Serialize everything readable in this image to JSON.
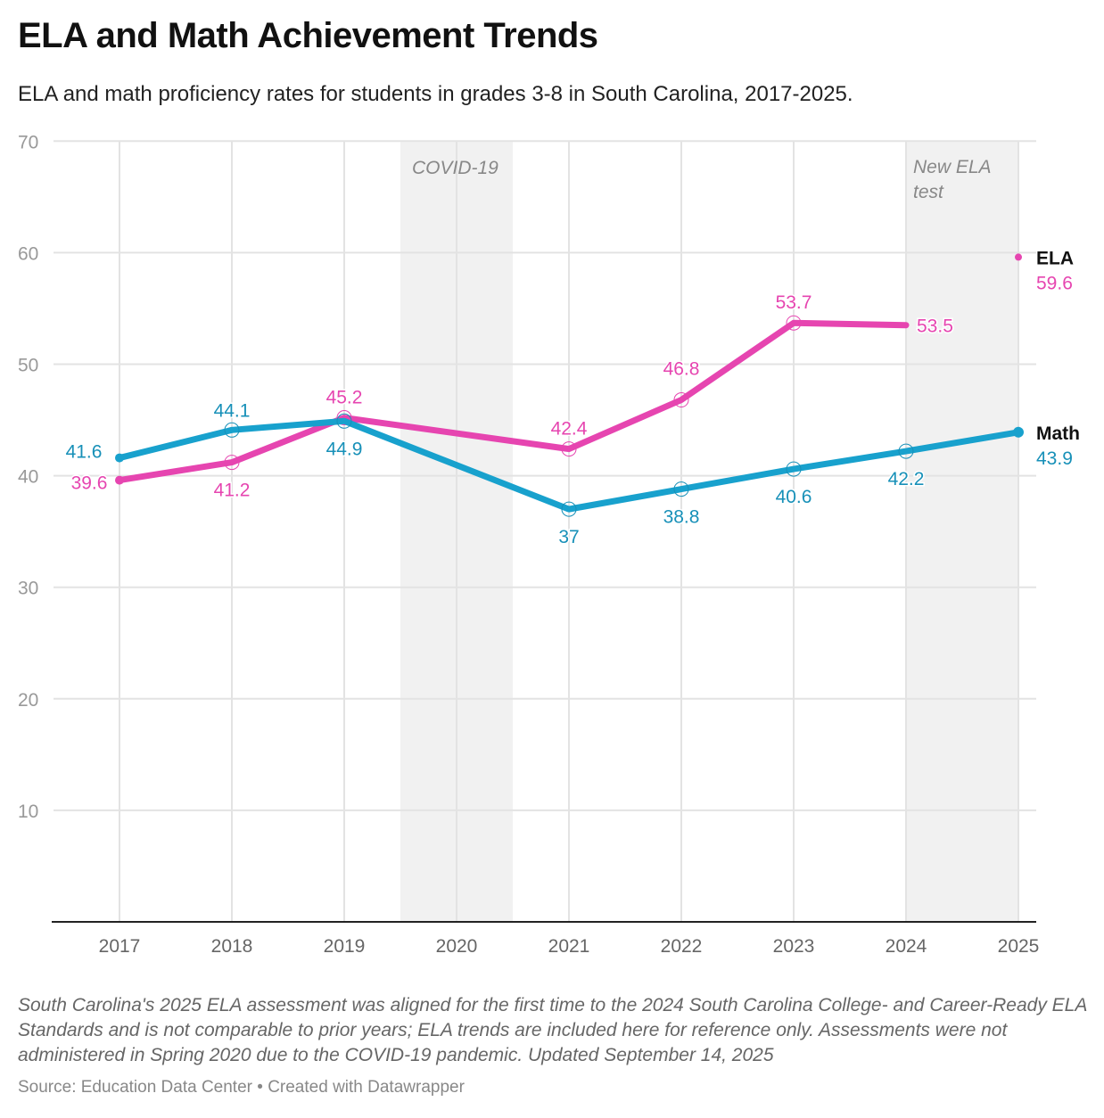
{
  "title": "ELA and Math Achievement Trends",
  "subtitle": "ELA and math proficiency rates for students in grades 3-8 in South Carolina, 2017-2025.",
  "notes": "South Carolina's 2025 ELA assessment was aligned for the first time to the 2024 South Carolina College- and Career-Ready ELA Standards and is not comparable to prior years; ELA trends are included here for reference only. Assessments were not administered in Spring 2020 due to the COVID-19 pandemic. Updated September 14, 2025",
  "source": "Source: Education Data Center • Created with Datawrapper",
  "chart_data": {
    "type": "line",
    "title": "ELA and Math Achievement Trends",
    "x": [
      2017,
      2018,
      2019,
      2020,
      2021,
      2022,
      2023,
      2024,
      2025
    ],
    "x_ticks": [
      "2017",
      "2018",
      "2019",
      "2020",
      "2021",
      "2022",
      "2023",
      "2024",
      "2025"
    ],
    "y_ticks": [
      "10",
      "20",
      "30",
      "40",
      "50",
      "60",
      "70"
    ],
    "ylim": [
      0,
      70
    ],
    "grid": true,
    "annotations": [
      {
        "label": "COVID-19",
        "range": [
          2019.5,
          2020.5
        ]
      },
      {
        "label": "New ELA test",
        "range": [
          2024,
          2025
        ]
      }
    ],
    "series": [
      {
        "name": "ELA",
        "color": "#e645b0",
        "points": [
          [
            2017,
            39.6
          ],
          [
            2018,
            41.2
          ],
          [
            2019,
            45.2
          ],
          [
            2021,
            42.4
          ],
          [
            2022,
            46.8
          ],
          [
            2023,
            53.7
          ],
          [
            2024,
            53.5
          ],
          [
            2025,
            59.6
          ]
        ],
        "labels": [
          "39.6",
          "41.2",
          "45.2",
          "42.4",
          "46.8",
          "53.7",
          "53.5",
          "59.6"
        ]
      },
      {
        "name": "Math",
        "color": "#18a1cd",
        "label_color": "#1790b8",
        "points": [
          [
            2017,
            41.6
          ],
          [
            2018,
            44.1
          ],
          [
            2019,
            44.9
          ],
          [
            2021,
            37
          ],
          [
            2022,
            38.8
          ],
          [
            2023,
            40.6
          ],
          [
            2024,
            42.2
          ],
          [
            2025,
            43.9
          ]
        ],
        "labels": [
          "41.6",
          "44.1",
          "44.9",
          "37",
          "38.8",
          "40.6",
          "42.2",
          "43.9"
        ]
      }
    ]
  }
}
